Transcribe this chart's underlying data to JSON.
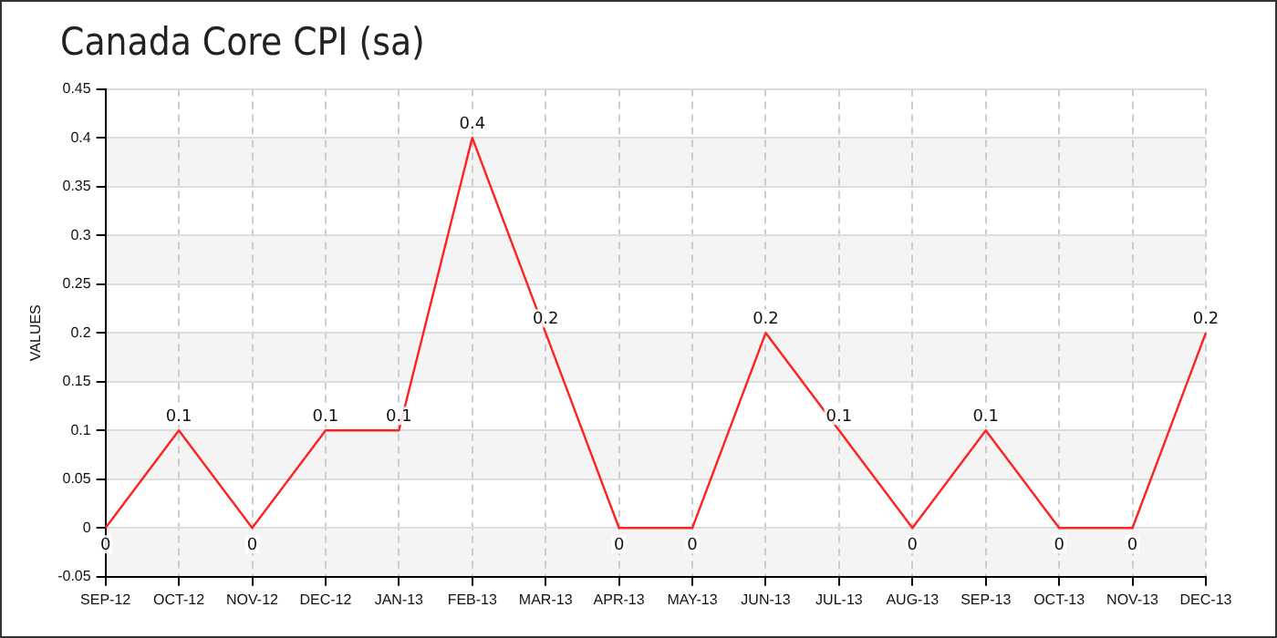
{
  "chart_data": {
    "type": "line",
    "title": "Canada Core CPI (sa)",
    "ylabel": "VALUES",
    "categories": [
      "SEP-12",
      "OCT-12",
      "NOV-12",
      "DEC-12",
      "JAN-13",
      "FEB-13",
      "MAR-13",
      "APR-13",
      "MAY-13",
      "JUN-13",
      "JUL-13",
      "AUG-13",
      "SEP-13",
      "OCT-13",
      "NOV-13",
      "DEC-13"
    ],
    "series": [
      {
        "color": "#ff2020",
        "values": [
          0,
          0.1,
          0,
          0.1,
          0.1,
          0.4,
          0.2,
          0,
          0,
          0.2,
          0.1,
          0,
          0.1,
          0,
          0,
          0.2
        ]
      }
    ],
    "ylim": [
      -0.05,
      0.45
    ],
    "yticks": [
      -0.05,
      0,
      0.05,
      0.1,
      0.15,
      0.2,
      0.25,
      0.3,
      0.35,
      0.4,
      0.45
    ],
    "grid": true,
    "legend": false,
    "marker": "none",
    "line_style": "solid",
    "data_labels": true
  }
}
